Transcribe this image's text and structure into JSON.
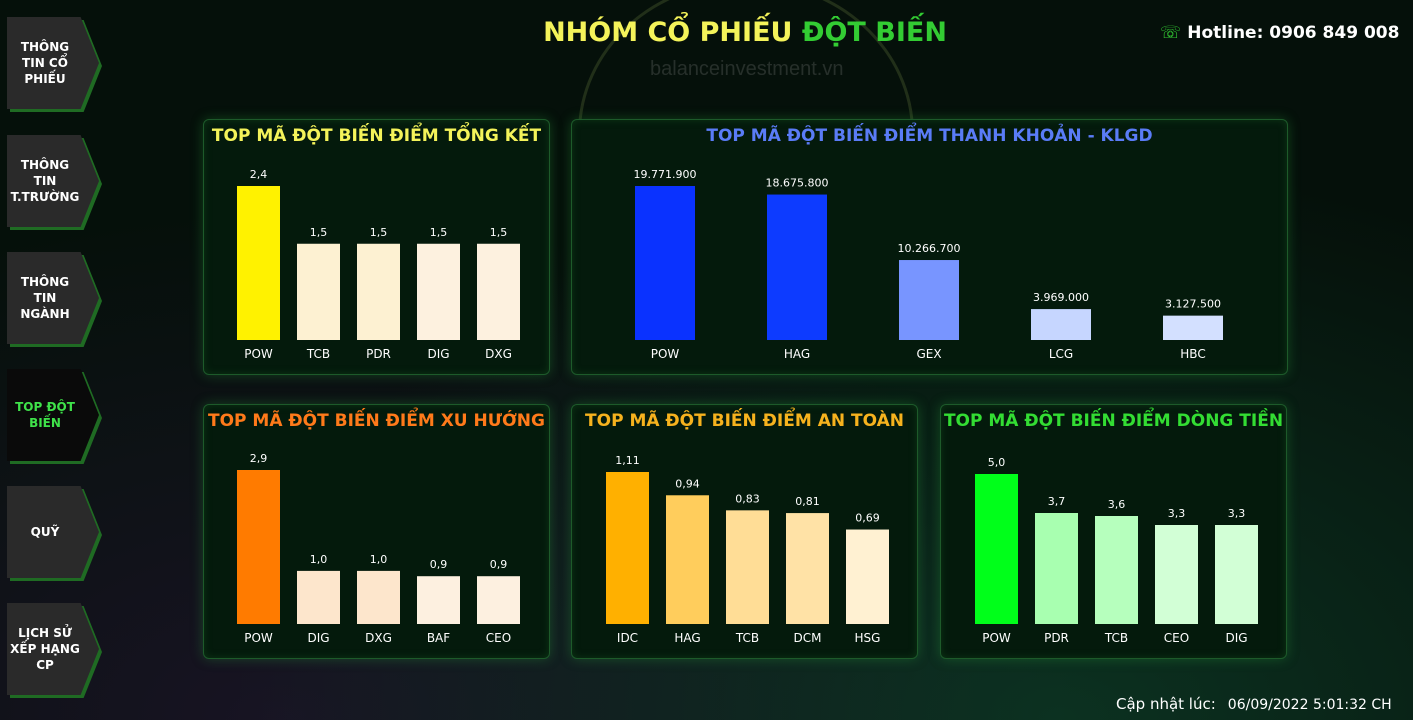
{
  "header": {
    "title_part1": "NHÓM CỔ PHIẾU",
    "title_part2": "ĐỘT BIẾN",
    "hotline": "Hotline: 0906 849 008",
    "watermark": "balanceinvestment.vn",
    "updated_label": "Cập nhật lúc:",
    "updated_value": "06/09/2022 5:01:32 CH"
  },
  "sidebar": {
    "items": [
      {
        "label": "THÔNG TIN CỔ PHIẾU"
      },
      {
        "label": "THÔNG TIN T.TRƯỜNG"
      },
      {
        "label": "THÔNG TIN NGÀNH"
      },
      {
        "label": "TOP ĐỘT BIẾN"
      },
      {
        "label": "QUỸ"
      },
      {
        "label": "LỊCH SỬ XẾP HẠNG CP"
      }
    ]
  },
  "chart_data": [
    {
      "type": "bar",
      "title": "TOP MÃ ĐỘT BIẾN ĐIỂM TỔNG KẾT",
      "title_color": "#f4f35a",
      "categories": [
        "POW",
        "TCB",
        "PDR",
        "DIG",
        "DXG"
      ],
      "values": [
        2.4,
        1.5,
        1.5,
        1.5,
        1.5
      ],
      "labels": [
        "2,4",
        "1,5",
        "1,5",
        "1,5",
        "1,5"
      ],
      "colors": [
        "#fff200",
        "#fdf1d2",
        "#fdf1d2",
        "#fdf1df",
        "#fdf1df"
      ],
      "ylim": [
        0,
        2.4
      ]
    },
    {
      "type": "bar",
      "title": "TOP MÃ ĐỘT BIẾN ĐIỂM THANH KHOẢN - KLGD",
      "title_color": "#5a7cf7",
      "categories": [
        "POW",
        "HAG",
        "GEX",
        "LCG",
        "HBC"
      ],
      "values": [
        19771900,
        18675800,
        10266700,
        3969000,
        3127500
      ],
      "labels": [
        "19.771.900",
        "18.675.800",
        "10.266.700",
        "3.969.000",
        "3.127.500"
      ],
      "colors": [
        "#0a32ff",
        "#0d3bff",
        "#7895ff",
        "#c6d6ff",
        "#d3e0ff"
      ],
      "ylim": [
        0,
        19771900
      ]
    },
    {
      "type": "bar",
      "title": "TOP MÃ ĐỘT BIẾN ĐIỂM XU HƯỚNG",
      "title_color": "#ff7a1a",
      "categories": [
        "POW",
        "DIG",
        "DXG",
        "BAF",
        "CEO"
      ],
      "values": [
        2.9,
        1.0,
        1.0,
        0.9,
        0.9
      ],
      "labels": [
        "2,9",
        "1,0",
        "1,0",
        "0,9",
        "0,9"
      ],
      "colors": [
        "#ff7b00",
        "#fde6cc",
        "#fde6cc",
        "#fdf0e0",
        "#fdf0e0"
      ],
      "ylim": [
        0,
        2.9
      ]
    },
    {
      "type": "bar",
      "title": "TOP MÃ ĐỘT BIẾN ĐIỂM AN TOÀN",
      "title_color": "#f6b21e",
      "categories": [
        "IDC",
        "HAG",
        "TCB",
        "DCM",
        "HSG"
      ],
      "values": [
        1.11,
        0.94,
        0.83,
        0.81,
        0.69
      ],
      "labels": [
        "1,11",
        "0,94",
        "0,83",
        "0,81",
        "0,69"
      ],
      "colors": [
        "#ffb000",
        "#ffcd5c",
        "#ffdd96",
        "#ffe2a6",
        "#fff1d2"
      ],
      "ylim": [
        0,
        1.11
      ]
    },
    {
      "type": "bar",
      "title": "TOP MÃ ĐỘT BIẾN ĐIỂM DÒNG TIỀN",
      "title_color": "#33dd33",
      "categories": [
        "POW",
        "PDR",
        "TCB",
        "CEO",
        "DIG"
      ],
      "values": [
        5.0,
        3.7,
        3.6,
        3.3,
        3.3
      ],
      "labels": [
        "5,0",
        "3,7",
        "3,6",
        "3,3",
        "3,3"
      ],
      "colors": [
        "#00ff1a",
        "#a8ffb0",
        "#b6ffbd",
        "#d2ffd6",
        "#d2ffd6"
      ],
      "ylim": [
        0,
        5.0
      ]
    }
  ]
}
